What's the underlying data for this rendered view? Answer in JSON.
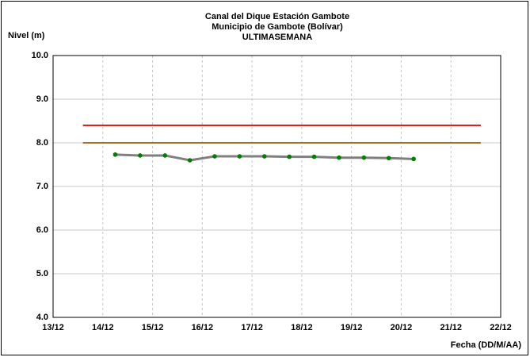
{
  "chart_data": {
    "type": "line",
    "title": [
      "Canal del Dique  Estación Gambote",
      "Municipio de Gambote (Bolívar)",
      "ULTIMASEMANA"
    ],
    "ylabel": "Nivel (m)",
    "xlabel": "Fecha (DD/M/AA)",
    "xlim": [
      13,
      22
    ],
    "xticks": [
      {
        "value": 13,
        "label": "13/12"
      },
      {
        "value": 14,
        "label": "14/12"
      },
      {
        "value": 15,
        "label": "15/12"
      },
      {
        "value": 16,
        "label": "16/12"
      },
      {
        "value": 17,
        "label": "17/12"
      },
      {
        "value": 18,
        "label": "18/12"
      },
      {
        "value": 19,
        "label": "19/12"
      },
      {
        "value": 20,
        "label": "20/12"
      },
      {
        "value": 21,
        "label": "21/12"
      },
      {
        "value": 22,
        "label": "22/12"
      }
    ],
    "ylim": [
      4,
      10
    ],
    "yticks": [
      {
        "value": 4,
        "label": "4.0"
      },
      {
        "value": 5,
        "label": "5.0"
      },
      {
        "value": 6,
        "label": "6.0"
      },
      {
        "value": 7,
        "label": "7.0"
      },
      {
        "value": 8,
        "label": "8.0"
      },
      {
        "value": 9,
        "label": "9.0"
      },
      {
        "value": 10,
        "label": "10.0"
      }
    ],
    "grid": true,
    "series": [
      {
        "color": "#808080",
        "marker_color": "#008000",
        "x": [
          14.25,
          14.75,
          15.25,
          15.75,
          16.25,
          16.75,
          17.25,
          17.75,
          18.25,
          18.75,
          19.25,
          19.75,
          20.25
        ],
        "values": [
          7.73,
          7.71,
          7.71,
          7.6,
          7.69,
          7.69,
          7.69,
          7.68,
          7.68,
          7.66,
          7.66,
          7.65,
          7.63
        ]
      },
      {
        "color": "#e02020",
        "x": [
          13.6,
          21.6
        ],
        "values": [
          8.4,
          8.4
        ]
      },
      {
        "color": "#a07030",
        "x": [
          13.6,
          21.6
        ],
        "values": [
          8.0,
          8.0
        ]
      }
    ]
  }
}
